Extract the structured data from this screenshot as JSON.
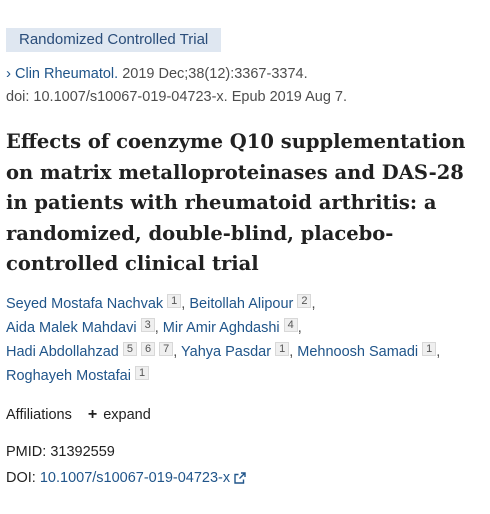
{
  "badge": "Randomized Controlled Trial",
  "citation": {
    "journal": "Clin Rheumatol.",
    "details": " 2019 Dec;38(12):3367-3374.",
    "doi_line": "doi: 10.1007/s10067-019-04723-x. Epub 2019 Aug 7."
  },
  "title": "Effects of coenzyme Q10 supplementation on matrix metalloproteinases and DAS-28 in patients with rheumatoid arthritis: a randomized, double-blind, placebo-controlled clinical trial",
  "authors": [
    {
      "name": "Seyed Mostafa Nachvak",
      "affs": [
        "1"
      ]
    },
    {
      "name": "Beitollah Alipour",
      "affs": [
        "2"
      ]
    },
    {
      "name": "Aida Malek Mahdavi",
      "affs": [
        "3"
      ]
    },
    {
      "name": "Mir Amir Aghdashi",
      "affs": [
        "4"
      ]
    },
    {
      "name": "Hadi Abdollahzad",
      "affs": [
        "5",
        "6",
        "7"
      ]
    },
    {
      "name": "Yahya Pasdar",
      "affs": [
        "1"
      ]
    },
    {
      "name": "Mehnoosh Samadi",
      "affs": [
        "1"
      ]
    },
    {
      "name": "Roghayeh Mostafai",
      "affs": [
        "1"
      ]
    }
  ],
  "affiliations": {
    "label": "Affiliations",
    "expand_label": "expand"
  },
  "pmid": {
    "label": "PMID:",
    "value": "31392559"
  },
  "doi": {
    "label": "DOI:",
    "value": "10.1007/s10067-019-04723-x"
  },
  "icons": {
    "citation": "chevron-right-icon",
    "expand": "plus-icon",
    "doi": "external-link-icon"
  }
}
